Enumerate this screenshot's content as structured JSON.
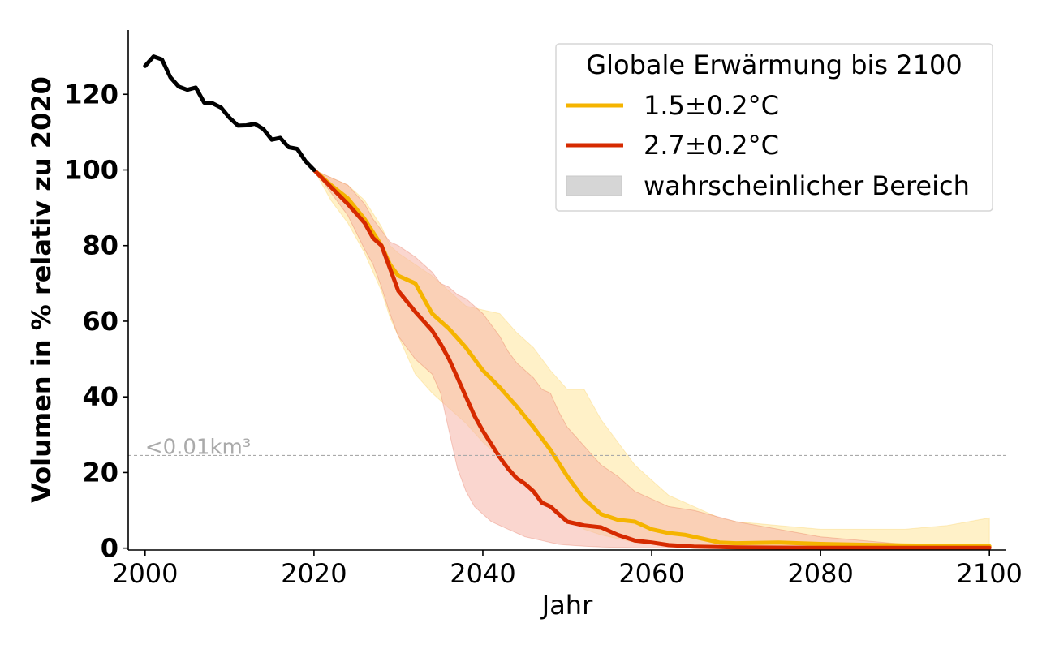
{
  "chart_data": {
    "type": "area",
    "title": "",
    "xlabel": "Jahr",
    "ylabel": "Volumen in % relativ zu 2020",
    "xlim": [
      1998,
      2102
    ],
    "ylim": [
      -0.5,
      137
    ],
    "xticks": [
      2000,
      2020,
      2040,
      2060,
      2080,
      2100
    ],
    "yticks": [
      0,
      20,
      40,
      60,
      80,
      100,
      120
    ],
    "grid": false,
    "legend": {
      "title": "Globale Erwärmung bis 2100",
      "position": "top-right",
      "entries": [
        "1.5±0.2°C",
        "2.7±0.2°C",
        "wahrscheinlicher Bereich"
      ]
    },
    "reference_line": {
      "y": 24.5,
      "label": "<0.01km³",
      "color": "#aaaaaa"
    },
    "historical": {
      "color": "#000000",
      "x": [
        2000,
        2001,
        2002,
        2003,
        2004,
        2005,
        2006,
        2007,
        2008,
        2009,
        2010,
        2011,
        2012,
        2013,
        2014,
        2015,
        2016,
        2017,
        2018,
        2019,
        2020
      ],
      "y": [
        127.5,
        130,
        129.2,
        124.5,
        122,
        121.2,
        121.8,
        117.8,
        117.6,
        116.5,
        113.8,
        111.7,
        111.8,
        112.2,
        110.8,
        108,
        108.5,
        106,
        105.6,
        102.3,
        100
      ]
    },
    "series": [
      {
        "name": "1.5±0.2°C",
        "color": "#f5b400",
        "band_color": "#ffe7a3",
        "x": [
          2020,
          2022,
          2024,
          2026,
          2028,
          2029,
          2030,
          2032,
          2034,
          2036,
          2038,
          2040,
          2042,
          2044,
          2046,
          2048,
          2050,
          2052,
          2054,
          2056,
          2058,
          2060,
          2062,
          2064,
          2066,
          2068,
          2070,
          2075,
          2080,
          2085,
          2090,
          2095,
          2100
        ],
        "y": [
          100,
          96,
          92.5,
          87,
          80,
          75,
          72,
          70,
          62,
          58,
          53,
          47,
          42.5,
          37.5,
          32,
          26,
          19,
          13,
          9,
          7.5,
          7,
          5,
          4,
          3.5,
          2.5,
          1.5,
          1.3,
          1.5,
          1.1,
          0.9,
          0.7,
          0.6,
          0.5
        ],
        "lower": [
          100,
          92,
          86,
          78,
          68,
          61,
          56,
          46,
          41,
          37,
          33,
          28,
          24,
          19,
          15,
          11,
          8,
          5,
          3.5,
          2.5,
          1.5,
          1,
          0.6,
          0.4,
          0.3,
          0.2,
          0.2,
          0.1,
          0.1,
          0.1,
          0.1,
          0.1,
          0.1
        ],
        "upper": [
          100,
          98,
          96,
          92,
          85,
          80,
          78,
          75,
          72,
          68,
          64,
          63,
          62,
          57,
          53,
          47,
          42,
          42,
          34,
          28,
          22,
          18,
          14,
          12,
          10,
          8,
          7,
          6,
          5,
          5,
          5,
          6,
          8
        ]
      },
      {
        "name": "2.7±0.2°C",
        "color": "#d62a00",
        "band_color": "#f5b5a8",
        "x": [
          2020,
          2022,
          2024,
          2026,
          2027,
          2028,
          2029,
          2030,
          2032,
          2034,
          2035,
          2036,
          2037,
          2038,
          2039,
          2040,
          2041,
          2042,
          2043,
          2044,
          2045,
          2046,
          2047,
          2048,
          2049,
          2050,
          2052,
          2054,
          2056,
          2058,
          2060,
          2062,
          2065,
          2070,
          2080,
          2090,
          2100
        ],
        "y": [
          100,
          95.5,
          91,
          86,
          82,
          80,
          74,
          68,
          62.5,
          57.5,
          54,
          50,
          45,
          40,
          35,
          31,
          27.5,
          24,
          21,
          18.5,
          17,
          15,
          12,
          11,
          9,
          7,
          6,
          5.5,
          3.5,
          2,
          1.5,
          0.8,
          0.4,
          0.2,
          0.1,
          0.1,
          0.1
        ],
        "lower": [
          100,
          94,
          88,
          79,
          75,
          69,
          62,
          56,
          50,
          46,
          41,
          31,
          21,
          15,
          11,
          9,
          7,
          6,
          5,
          4,
          3,
          2.5,
          2,
          1.5,
          1,
          0.8,
          0.5,
          0.3,
          0.2,
          0.1,
          0.1,
          0.1,
          0.1,
          0.1,
          0.1,
          0.1,
          0.1
        ],
        "upper": [
          100,
          98,
          96,
          91,
          87,
          84,
          81,
          80,
          77,
          73,
          70,
          69,
          67,
          66,
          64,
          62,
          59,
          56,
          52,
          49,
          47,
          45,
          42,
          41,
          36,
          32,
          27,
          22,
          19,
          15,
          13,
          11,
          10,
          7,
          3,
          1,
          0.5
        ]
      }
    ]
  }
}
